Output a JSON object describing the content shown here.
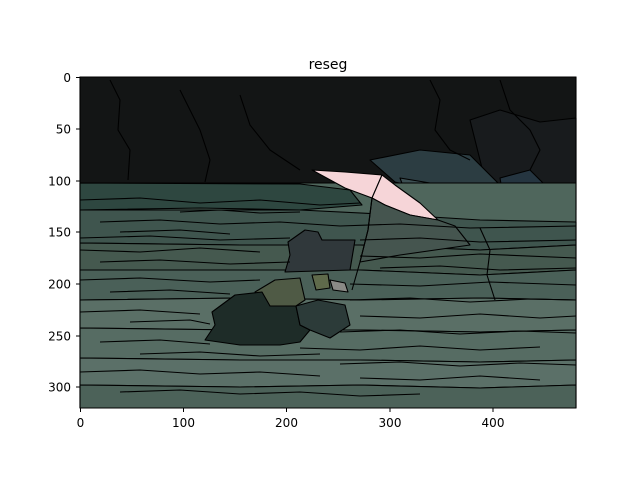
{
  "figure": {
    "title": "reseg",
    "x_ticks": [
      "0",
      "100",
      "200",
      "300",
      "400"
    ],
    "y_ticks": [
      "0",
      "50",
      "100",
      "150",
      "200",
      "250",
      "300"
    ]
  },
  "image": {
    "width": 480,
    "height": 320,
    "description_colors": {
      "sky": "#131515",
      "water": "#546a61",
      "umbrella": "#f4d3d6",
      "shore": "#3e4c4e",
      "boat": "#1d2a26"
    }
  }
}
